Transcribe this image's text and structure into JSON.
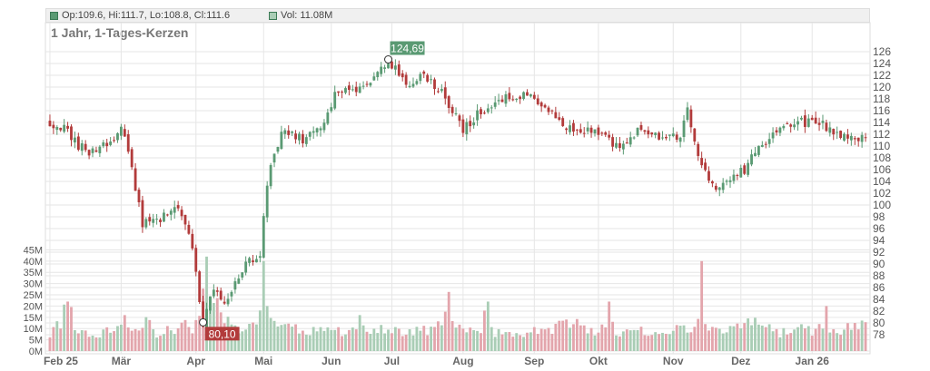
{
  "legend": {
    "ohlc_text": "Op:109.6, Hi:111.7, Lo:108.8, Cl:111.6",
    "volume_text": "Vol: 11.08M",
    "price_swatch_color": "#5a9a73",
    "volume_swatch_color": "#a9cdb5"
  },
  "title": "1 Jahr, 1-Tages-Kerzen",
  "colors": {
    "up": "#5a9a73",
    "down": "#b23b3b",
    "vol_up": "#a9cdb5",
    "vol_down": "#e3a5ac",
    "grid": "#e6e6e6",
    "axis_text": "#555555"
  },
  "chart_data": {
    "type": "candlestick",
    "title": "1 Jahr, 1-Tages-Kerzen",
    "price_axis": {
      "ticks": [
        78,
        80,
        82,
        84,
        86,
        88,
        90,
        92,
        94,
        96,
        98,
        100,
        102,
        104,
        106,
        108,
        110,
        112,
        114,
        116,
        118,
        120,
        122,
        124,
        126
      ],
      "labels": [
        "78",
        "80",
        "82",
        "84",
        "86",
        "88",
        "90",
        "92",
        "94",
        "96",
        "98",
        "100",
        "102",
        "104",
        "106",
        "108",
        "110",
        "112",
        "114",
        "116",
        "118",
        "120",
        "122",
        "124",
        "126"
      ],
      "range": [
        76,
        128
      ]
    },
    "volume_axis": {
      "ticks": [
        0,
        5,
        10,
        15,
        20,
        25,
        30,
        35,
        40,
        45
      ],
      "labels": [
        "0M",
        "5M",
        "10M",
        "15M",
        "20M",
        "25M",
        "30M",
        "35M",
        "40M",
        "45M"
      ],
      "range": [
        0,
        48
      ],
      "unit": "M"
    },
    "months": [
      {
        "label": "Feb 25",
        "index": 0
      },
      {
        "label": "Mär",
        "index": 20
      },
      {
        "label": "Apr",
        "index": 41
      },
      {
        "label": "Mai",
        "index": 60
      },
      {
        "label": "Jun",
        "index": 79
      },
      {
        "label": "Jul",
        "index": 96
      },
      {
        "label": "Aug",
        "index": 116
      },
      {
        "label": "Sep",
        "index": 136
      },
      {
        "label": "Okt",
        "index": 154
      },
      {
        "label": "Nov",
        "index": 175
      },
      {
        "label": "Dez",
        "index": 194
      },
      {
        "label": "Jan 26",
        "index": 214
      }
    ],
    "series": [
      {
        "name": "Close",
        "anchors": [
          [
            0,
            114
          ],
          [
            4,
            113
          ],
          [
            8,
            110
          ],
          [
            11,
            109
          ],
          [
            14,
            110
          ],
          [
            18,
            111
          ],
          [
            20,
            114
          ],
          [
            23,
            106
          ],
          [
            26,
            97
          ],
          [
            29,
            97
          ],
          [
            32,
            98
          ],
          [
            35,
            100
          ],
          [
            38,
            97
          ],
          [
            40,
            92
          ],
          [
            41,
            88
          ],
          [
            43,
            80.1
          ],
          [
            45,
            84
          ],
          [
            47,
            86
          ],
          [
            49,
            83
          ],
          [
            51,
            86
          ],
          [
            53,
            88
          ],
          [
            55,
            90
          ],
          [
            57,
            91
          ],
          [
            59,
            92
          ],
          [
            61,
            104
          ],
          [
            63,
            108
          ],
          [
            65,
            112
          ],
          [
            68,
            112
          ],
          [
            71,
            111
          ],
          [
            74,
            112
          ],
          [
            77,
            114
          ],
          [
            80,
            119
          ],
          [
            83,
            120
          ],
          [
            86,
            119
          ],
          [
            89,
            120
          ],
          [
            92,
            123
          ],
          [
            95,
            124.7
          ],
          [
            98,
            122
          ],
          [
            101,
            120
          ],
          [
            104,
            122
          ],
          [
            107,
            121
          ],
          [
            110,
            119
          ],
          [
            113,
            116
          ],
          [
            116,
            113
          ],
          [
            118,
            114
          ],
          [
            121,
            116
          ],
          [
            124,
            117
          ],
          [
            127,
            118
          ],
          [
            130,
            118
          ],
          [
            133,
            119
          ],
          [
            136,
            118
          ],
          [
            139,
            117
          ],
          [
            142,
            115
          ],
          [
            145,
            113
          ],
          [
            148,
            113
          ],
          [
            151,
            113
          ],
          [
            154,
            112
          ],
          [
            157,
            111
          ],
          [
            160,
            110
          ],
          [
            163,
            111
          ],
          [
            166,
            113
          ],
          [
            169,
            112
          ],
          [
            172,
            111
          ],
          [
            175,
            112
          ],
          [
            177,
            111
          ],
          [
            179,
            117
          ],
          [
            181,
            110
          ],
          [
            183,
            107
          ],
          [
            185,
            104
          ],
          [
            187,
            103
          ],
          [
            189,
            103
          ],
          [
            192,
            105
          ],
          [
            195,
            106
          ],
          [
            198,
            109
          ],
          [
            201,
            111
          ],
          [
            204,
            112
          ],
          [
            207,
            113
          ],
          [
            210,
            114
          ],
          [
            213,
            114
          ],
          [
            216,
            114
          ],
          [
            219,
            113
          ],
          [
            222,
            112
          ],
          [
            225,
            111
          ],
          [
            228,
            111.6
          ]
        ]
      },
      {
        "name": "Volume",
        "anchors": [
          [
            0,
            8
          ],
          [
            3,
            12
          ],
          [
            5,
            22
          ],
          [
            7,
            10
          ],
          [
            12,
            7
          ],
          [
            15,
            8
          ],
          [
            19,
            10
          ],
          [
            21,
            14
          ],
          [
            24,
            10
          ],
          [
            27,
            13
          ],
          [
            30,
            8
          ],
          [
            33,
            10
          ],
          [
            36,
            10
          ],
          [
            38,
            12
          ],
          [
            40,
            9
          ],
          [
            42,
            14
          ],
          [
            44,
            42
          ],
          [
            46,
            24
          ],
          [
            48,
            18
          ],
          [
            50,
            13
          ],
          [
            52,
            12
          ],
          [
            54,
            9
          ],
          [
            56,
            11
          ],
          [
            58,
            14
          ],
          [
            60,
            20
          ],
          [
            62,
            13
          ],
          [
            64,
            11
          ],
          [
            67,
            10
          ],
          [
            70,
            10
          ],
          [
            73,
            9
          ],
          [
            76,
            9
          ],
          [
            78,
            12
          ],
          [
            80,
            10
          ],
          [
            83,
            8
          ],
          [
            86,
            9
          ],
          [
            89,
            10
          ],
          [
            92,
            10
          ],
          [
            95,
            10
          ],
          [
            98,
            8
          ],
          [
            101,
            8
          ],
          [
            104,
            10
          ],
          [
            107,
            9
          ],
          [
            110,
            12
          ],
          [
            112,
            22
          ],
          [
            114,
            10
          ],
          [
            117,
            9
          ],
          [
            120,
            8
          ],
          [
            123,
            9
          ],
          [
            126,
            8
          ],
          [
            129,
            7
          ],
          [
            132,
            8
          ],
          [
            135,
            9
          ],
          [
            138,
            8
          ],
          [
            141,
            10
          ],
          [
            144,
            12
          ],
          [
            147,
            14
          ],
          [
            150,
            10
          ],
          [
            153,
            9
          ],
          [
            156,
            10
          ],
          [
            159,
            8
          ],
          [
            162,
            8
          ],
          [
            165,
            9
          ],
          [
            168,
            9
          ],
          [
            171,
            8
          ],
          [
            174,
            9
          ],
          [
            176,
            12
          ],
          [
            178,
            11
          ],
          [
            180,
            10
          ],
          [
            182,
            12
          ],
          [
            184,
            10
          ],
          [
            187,
            9
          ],
          [
            190,
            10
          ],
          [
            193,
            11
          ],
          [
            196,
            13
          ],
          [
            199,
            12
          ],
          [
            202,
            10
          ],
          [
            205,
            8
          ],
          [
            208,
            9
          ],
          [
            211,
            10
          ],
          [
            214,
            9
          ],
          [
            217,
            10
          ],
          [
            220,
            9
          ],
          [
            224,
            10
          ],
          [
            228,
            11.08
          ]
        ]
      },
      {
        "name": "Volume spikes",
        "anchors": [
          [
            5,
            22
          ],
          [
            44,
            42
          ],
          [
            45,
            24
          ],
          [
            60,
            40
          ],
          [
            61,
            20
          ],
          [
            87,
            16
          ],
          [
            122,
            18
          ],
          [
            123,
            22
          ],
          [
            157,
            22
          ],
          [
            158,
            13
          ],
          [
            183,
            40
          ],
          [
            184,
            12
          ],
          [
            218,
            20
          ]
        ]
      }
    ],
    "annotations": [
      {
        "label": "124,69",
        "index": 95,
        "value": 124.69,
        "kind": "high"
      },
      {
        "label": "80,10",
        "index": 43,
        "value": 80.1,
        "kind": "low"
      }
    ],
    "last": {
      "open": 109.6,
      "high": 111.7,
      "low": 108.8,
      "close": 111.6,
      "volume": 11.08
    },
    "bar_count": 230,
    "grid": true
  }
}
